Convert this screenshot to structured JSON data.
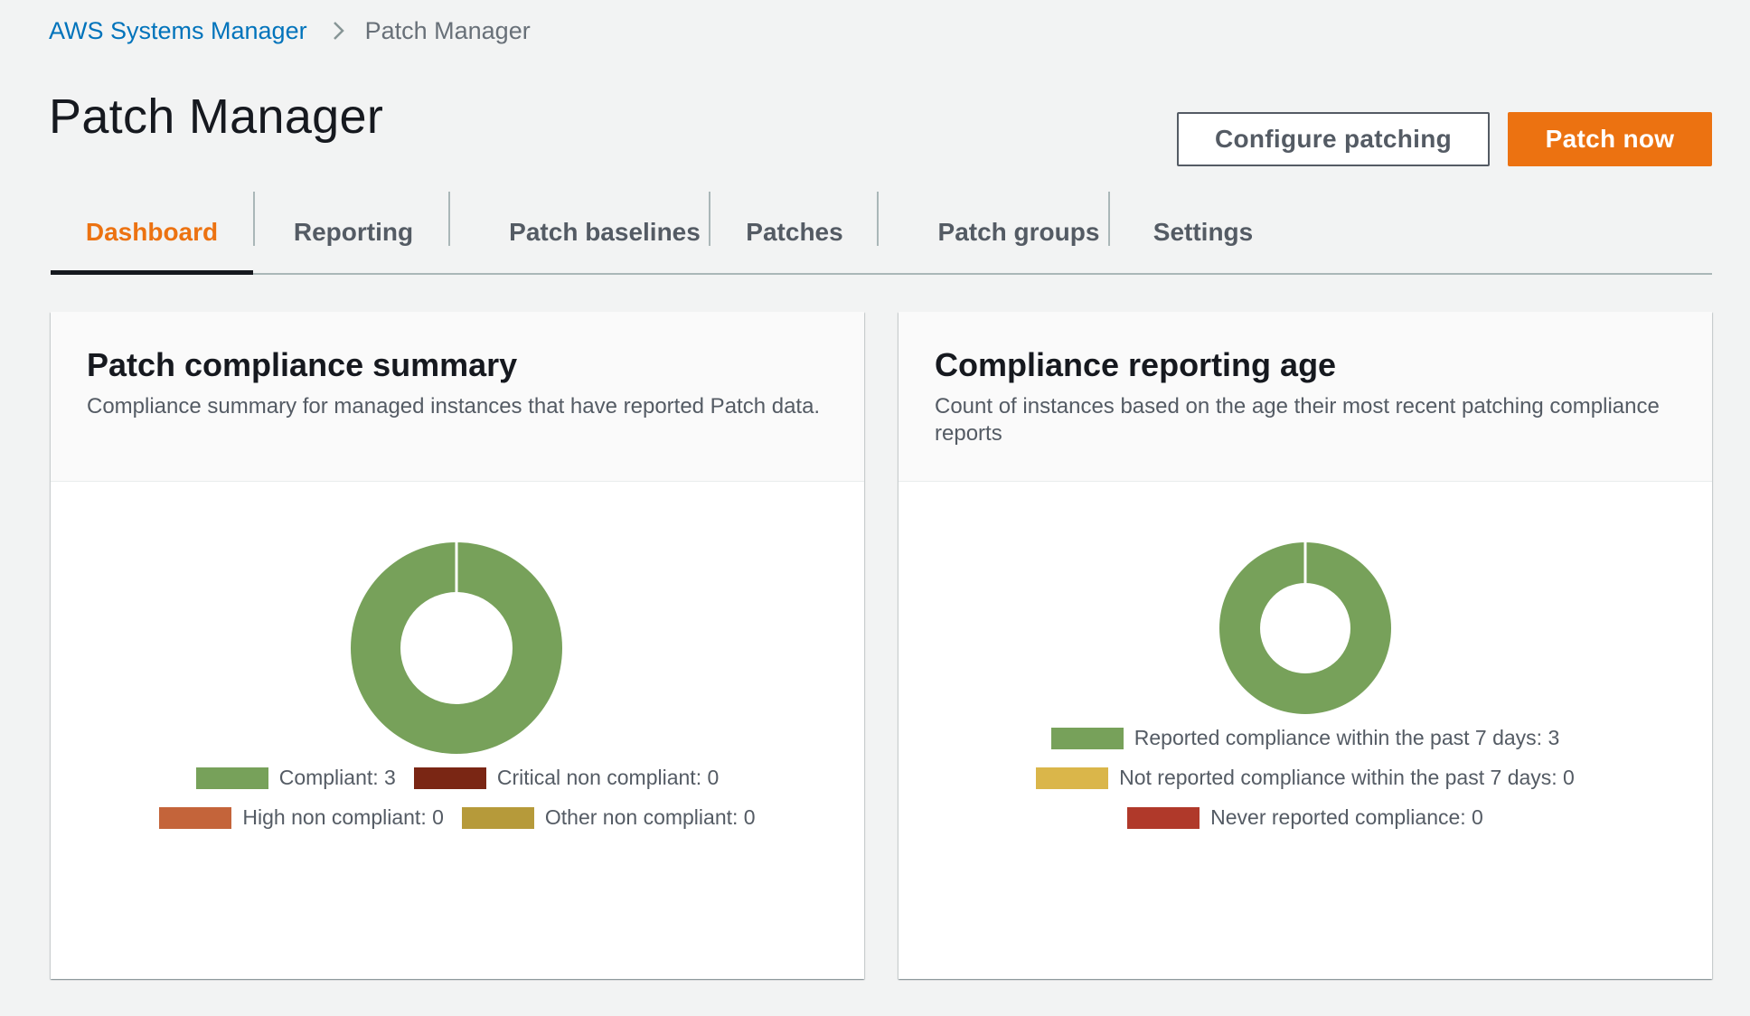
{
  "breadcrumb": {
    "parent": "AWS Systems Manager",
    "current": "Patch Manager"
  },
  "header": {
    "title": "Patch Manager",
    "configure_label": "Configure patching",
    "patch_now_label": "Patch now"
  },
  "tabs": [
    {
      "label": "Dashboard",
      "active": true
    },
    {
      "label": "Reporting",
      "active": false
    },
    {
      "label": "Patch baselines",
      "active": false
    },
    {
      "label": "Patches",
      "active": false
    },
    {
      "label": "Patch groups",
      "active": false
    },
    {
      "label": "Settings",
      "active": false
    }
  ],
  "compliance_summary": {
    "title": "Patch compliance summary",
    "description": "Compliance summary for managed instances that have reported Patch data.",
    "legend": [
      {
        "text": "Compliant: 3",
        "color": "#77a15a"
      },
      {
        "text": "Critical non compliant: 0",
        "color": "#7a2614"
      },
      {
        "text": "High non compliant: 0",
        "color": "#c4643a"
      },
      {
        "text": "Other non compliant: 0",
        "color": "#b69a3a"
      }
    ]
  },
  "reporting_age": {
    "title": "Compliance reporting age",
    "description": "Count of instances based on the age their most recent patching compliance reports",
    "legend": [
      {
        "text": "Reported compliance within the past 7 days: 3",
        "color": "#77a15a"
      },
      {
        "text": "Not reported compliance within the past 7 days: 0",
        "color": "#dab64a"
      },
      {
        "text": "Never reported compliance: 0",
        "color": "#b0392a"
      }
    ]
  },
  "chart_data": [
    {
      "type": "pie",
      "title": "Patch compliance summary",
      "categories": [
        "Compliant",
        "Critical non compliant",
        "High non compliant",
        "Other non compliant"
      ],
      "values": [
        3,
        0,
        0,
        0
      ]
    },
    {
      "type": "pie",
      "title": "Compliance reporting age",
      "categories": [
        "Reported compliance within the past 7 days",
        "Not reported compliance within the past 7 days",
        "Never reported compliance"
      ],
      "values": [
        3,
        0,
        0
      ]
    }
  ]
}
